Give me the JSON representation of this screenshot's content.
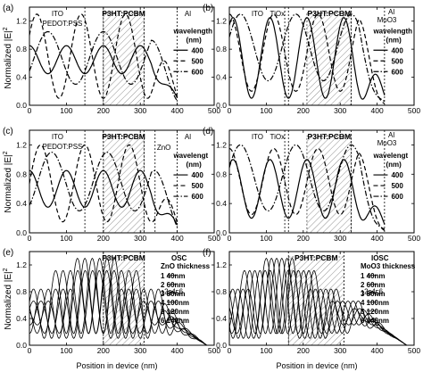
{
  "figure": {
    "y_label_upper": "Normalized |E|",
    "y_label_sup": "2",
    "x_label": "Position in device (nm)"
  },
  "chart_data": [
    {
      "id": "a",
      "type": "line",
      "panel_label": "(a)",
      "xlim": [
        0,
        500
      ],
      "ylim": [
        0,
        1.4
      ],
      "x_ticks": [
        0,
        100,
        200,
        300,
        400,
        500
      ],
      "y_ticks": [
        0.0,
        0.4,
        0.8,
        1.2
      ],
      "region_label": "P3HT:PCBM",
      "region": [
        200,
        310
      ],
      "interfaces": [
        150,
        200,
        310,
        400
      ],
      "layer_labels": [
        "ITO",
        "PEDOT:PSS",
        "Al"
      ],
      "legend_title": [
        "wavelength",
        "(nm)"
      ],
      "series": [
        {
          "name": "400",
          "dash": "solid",
          "period": 100,
          "phase": 0,
          "amp": 0.85,
          "ymin": 0.45
        },
        {
          "name": "500",
          "dash": "dashed",
          "period": 120,
          "phase": 20,
          "amp": 1.3,
          "ymin": 0.1
        },
        {
          "name": "600",
          "dash": "dashdot",
          "period": 150,
          "phase": 50,
          "amp": 1.05,
          "ymin": 0.3
        }
      ]
    },
    {
      "id": "b",
      "type": "line",
      "panel_label": "(b)",
      "xlim": [
        0,
        500
      ],
      "ylim": [
        0,
        1.4
      ],
      "x_ticks": [
        0,
        100,
        200,
        300,
        400,
        500
      ],
      "y_ticks": [
        0.0,
        0.4,
        0.8,
        1.2
      ],
      "region_label": "P3HT:PCBM",
      "region": [
        210,
        330
      ],
      "interfaces": [
        150,
        160,
        330,
        420
      ],
      "layer_labels": [
        "ITO",
        "TiOx",
        "Al",
        "MoO3"
      ],
      "legend_title": [
        "wavelength",
        "(nm)"
      ],
      "series": [
        {
          "name": "400",
          "dash": "solid",
          "period": 100,
          "phase": 10,
          "amp": 1.25,
          "ymin": 0.1
        },
        {
          "name": "500",
          "dash": "dashed",
          "period": 120,
          "phase": 0,
          "amp": 1.3,
          "ymin": 0.2
        },
        {
          "name": "600",
          "dash": "dashdot",
          "period": 150,
          "phase": 30,
          "amp": 1.3,
          "ymin": 0.35
        }
      ]
    },
    {
      "id": "c",
      "type": "line",
      "panel_label": "(c)",
      "xlim": [
        0,
        500
      ],
      "ylim": [
        0,
        1.4
      ],
      "x_ticks": [
        0,
        100,
        200,
        300,
        400,
        500
      ],
      "y_ticks": [
        0.0,
        0.4,
        0.8,
        1.2
      ],
      "region_label": "P3HT:PCBM",
      "region": [
        200,
        310
      ],
      "interfaces": [
        150,
        200,
        310,
        340,
        400
      ],
      "layer_labels": [
        "ITO",
        "PEDOT:PSS",
        "Al",
        "ZnO"
      ],
      "legend_title": [
        "wavelengt",
        "(nm)"
      ],
      "series": [
        {
          "name": "400",
          "dash": "solid",
          "period": 100,
          "phase": 0,
          "amp": 0.85,
          "ymin": 0.35
        },
        {
          "name": "500",
          "dash": "dashed",
          "period": 120,
          "phase": 30,
          "amp": 1.2,
          "ymin": 0.15
        },
        {
          "name": "600",
          "dash": "dashdot",
          "period": 150,
          "phase": 60,
          "amp": 1.1,
          "ymin": 0.3
        }
      ]
    },
    {
      "id": "d",
      "type": "line",
      "panel_label": "(d)",
      "xlim": [
        0,
        500
      ],
      "ylim": [
        0,
        1.4
      ],
      "x_ticks": [
        0,
        100,
        200,
        300,
        400,
        500
      ],
      "y_ticks": [
        0.0,
        0.4,
        0.8,
        1.2
      ],
      "region_label": "P3HT:PCBM",
      "region": [
        210,
        330
      ],
      "interfaces": [
        150,
        160,
        330,
        420
      ],
      "layer_labels": [
        "ITO",
        "TiOx",
        "Al",
        "MoO3"
      ],
      "legend_title": [
        "wavelengt",
        "(nm)"
      ],
      "series": [
        {
          "name": "400",
          "dash": "solid",
          "period": 100,
          "phase": 10,
          "amp": 1.0,
          "ymin": 0.2
        },
        {
          "name": "500",
          "dash": "dashed",
          "period": 120,
          "phase": 0,
          "amp": 1.15,
          "ymin": 0.25
        },
        {
          "name": "600",
          "dash": "dashdot",
          "period": 150,
          "phase": 30,
          "amp": 1.2,
          "ymin": 0.3
        }
      ]
    },
    {
      "id": "e",
      "type": "line",
      "panel_label": "(e)",
      "xlim": [
        0,
        500
      ],
      "ylim": [
        0,
        1.4
      ],
      "x_ticks": [
        0,
        100,
        200,
        300,
        400,
        500
      ],
      "y_ticks": [
        0.0,
        0.4,
        0.8,
        1.2
      ],
      "region_label": "P3HT:PCBM",
      "region": [
        200,
        310
      ],
      "interfaces": [
        200,
        310
      ],
      "legend_title": [
        "OSC",
        "ZnO thickness"
      ],
      "series": [
        {
          "name": "1",
          "label": "40nm",
          "shift": 0
        },
        {
          "name": "2",
          "label": "60nm",
          "shift": 20
        },
        {
          "name": "3",
          "label": "80nm",
          "shift": 40
        },
        {
          "name": "4",
          "label": "100nm",
          "shift": 60
        },
        {
          "name": "5",
          "label": "120nm",
          "shift": 80
        },
        {
          "name": "6",
          "label": "140nm",
          "shift": 100
        }
      ],
      "curve_markers": [
        "1",
        "2",
        "3",
        "4",
        "5",
        "6"
      ]
    },
    {
      "id": "f",
      "type": "line",
      "panel_label": "(f)",
      "xlim": [
        0,
        500
      ],
      "ylim": [
        0,
        1.4
      ],
      "x_ticks": [
        0,
        100,
        200,
        300,
        400,
        500
      ],
      "y_ticks": [
        0.0,
        0.4,
        0.8,
        1.2
      ],
      "region_label": "P3HT:PCBM",
      "region": [
        160,
        310
      ],
      "interfaces": [
        160,
        310
      ],
      "legend_title": [
        "IOSC",
        "MoO3 thickness"
      ],
      "series": [
        {
          "name": "1",
          "label": "40nm",
          "shift": 0
        },
        {
          "name": "2",
          "label": "60nm",
          "shift": 20
        },
        {
          "name": "3",
          "label": "80nm",
          "shift": 40
        },
        {
          "name": "4",
          "label": "100nm",
          "shift": 60
        },
        {
          "name": "5",
          "label": "120nm",
          "shift": 80
        },
        {
          "name": "6",
          "label": "140nm",
          "shift": 100
        }
      ],
      "curve_markers": [
        "1",
        "2",
        "3",
        "4",
        "5",
        "6"
      ]
    }
  ]
}
